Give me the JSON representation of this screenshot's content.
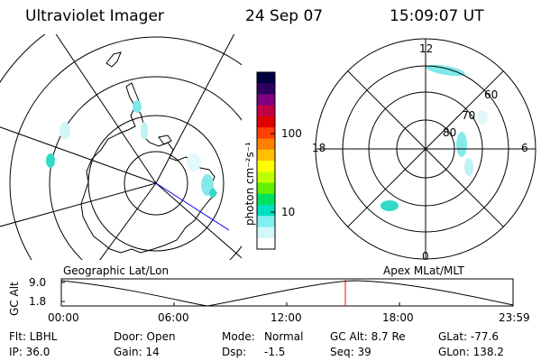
{
  "header": {
    "instrument": "Ultraviolet Imager",
    "date": "24 Sep 07",
    "time": "15:09:07 UT"
  },
  "left_map": {
    "label": "Geographic Lat/Lon"
  },
  "right_map": {
    "label": "Apex MLat/MLT",
    "mlt_labels": {
      "top": "12",
      "left": "18",
      "right": "6",
      "bottom": "0"
    },
    "lat_labels": [
      "60",
      "70",
      "80"
    ]
  },
  "colorbar": {
    "label": "photon cm⁻²s⁻¹",
    "ticks": [
      "100",
      "10"
    ],
    "colors": [
      "#000040",
      "#300060",
      "#800080",
      "#c00040",
      "#e00000",
      "#ff4000",
      "#ff8000",
      "#ffc000",
      "#ffff00",
      "#c0ff00",
      "#60f000",
      "#00e060",
      "#00e0c0",
      "#80f0f0",
      "#d0f8f8",
      "#ffffff"
    ]
  },
  "altitude_plot": {
    "ylabel": "GC Alt",
    "yticks": [
      "9.0",
      "1.8"
    ],
    "xticks": [
      "00:00",
      "06:00",
      "12:00",
      "18:00",
      "23:59"
    ],
    "marker_color": "#ff0000"
  },
  "footer": {
    "filter": "Flt: LBHL",
    "ip": "IP: 36.0",
    "door": "Door: Open",
    "gain": "Gain: 14",
    "mode_label": "Mode:",
    "mode_value": "Normal",
    "dsp_label": "Dsp:",
    "dsp_value": "-1.5",
    "gc_alt": "GC Alt: 8.7 Re",
    "seq": "Seq: 39",
    "glat": "GLat: -77.6",
    "glon": "GLon: 138.2"
  }
}
